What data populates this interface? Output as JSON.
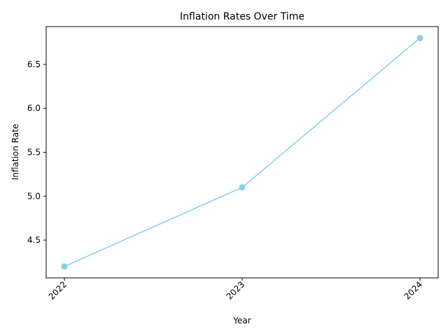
{
  "chart_data": {
    "type": "line",
    "title": "Inflation Rates Over Time",
    "xlabel": "Year",
    "ylabel": "Inflation Rate",
    "categories": [
      "2022",
      "2023",
      "2024"
    ],
    "series": [
      {
        "values": [
          4.2,
          5.1,
          6.8
        ],
        "color": "#87ceeb",
        "marker": "circle"
      }
    ],
    "yticks": [
      "4.5",
      "5.0",
      "5.5",
      "6.0",
      "6.5"
    ],
    "ylim": [
      4.07,
      6.93
    ],
    "xtick_rotation": "45 degrees",
    "grid": false,
    "legend": "none"
  }
}
